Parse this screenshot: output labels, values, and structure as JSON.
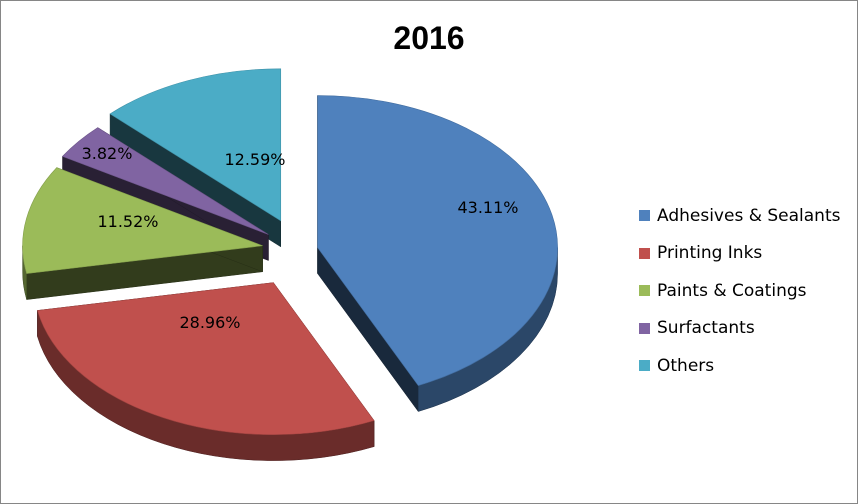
{
  "chart_data": {
    "type": "pie",
    "title": "2016",
    "exploded": true,
    "three_d": true,
    "legend_position": "right",
    "slices": [
      {
        "name": "Adhesives & Sealants",
        "value": 43.11,
        "label": "43.11%",
        "color": "#4F81BD"
      },
      {
        "name": "Printing Inks",
        "value": 28.96,
        "label": "28.96%",
        "color": "#C0504D"
      },
      {
        "name": "Paints & Coatings",
        "value": 11.52,
        "label": "11.52%",
        "color": "#9BBB59"
      },
      {
        "name": "Surfactants",
        "value": 3.82,
        "label": "3.82%",
        "color": "#8064A2"
      },
      {
        "name": "Others",
        "value": 12.59,
        "label": "12.59%",
        "color": "#4BACC6"
      }
    ]
  }
}
